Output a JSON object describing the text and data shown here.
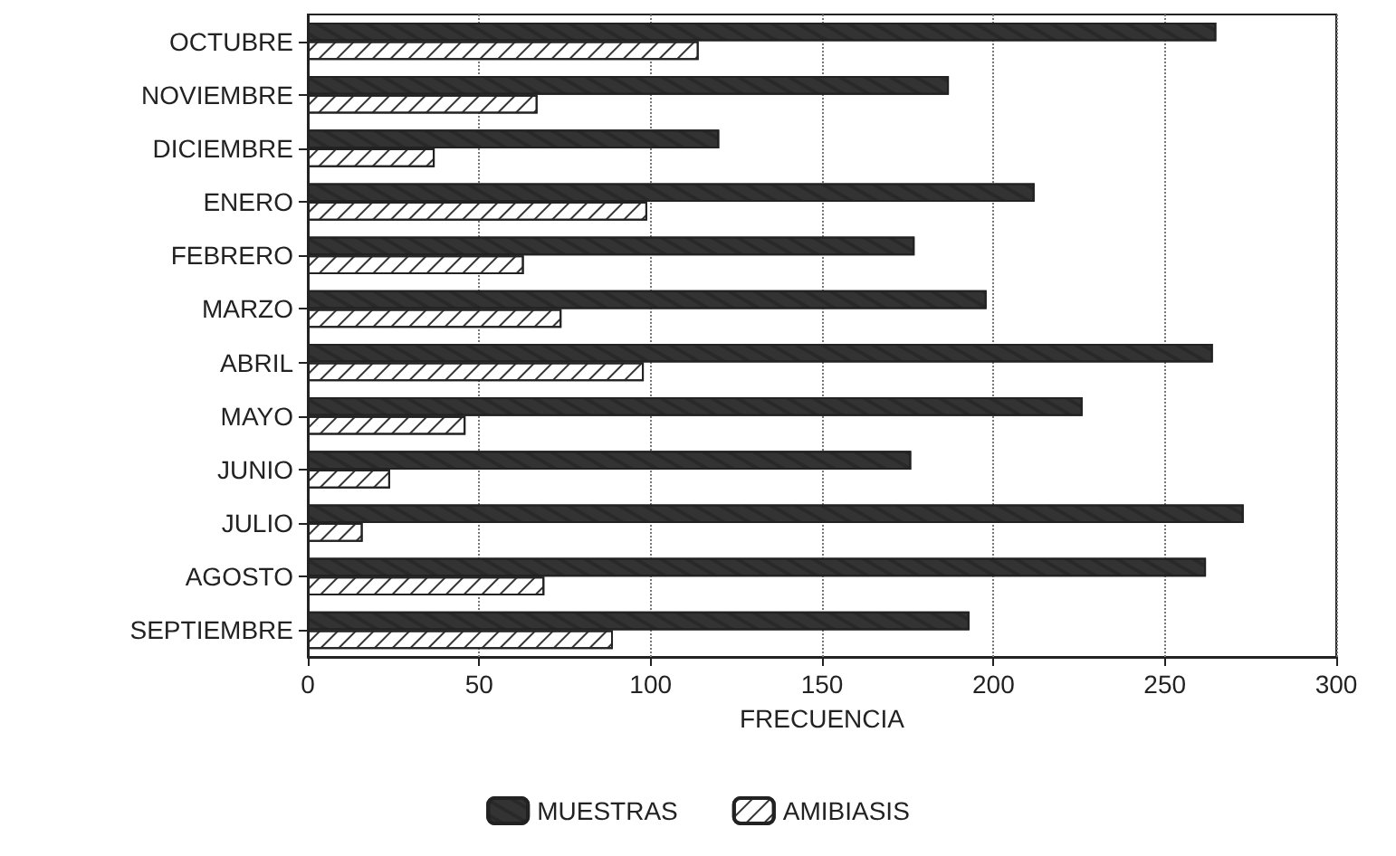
{
  "chart_data": {
    "type": "bar",
    "orientation": "horizontal",
    "xlabel": "FRECUENCIA",
    "categories": [
      "OCTUBRE",
      "NOVIEMBRE",
      "DICIEMBRE",
      "ENERO",
      "FEBRERO",
      "MARZO",
      "ABRIL",
      "MAYO",
      "JUNIO",
      "JULIO",
      "AGOSTO",
      "SEPTIEMBRE"
    ],
    "series": [
      {
        "name": "MUESTRAS",
        "color": "#333333",
        "values": [
          265,
          187,
          120,
          212,
          177,
          198,
          264,
          226,
          176,
          273,
          262,
          193
        ]
      },
      {
        "name": "AMIBIASIS",
        "color": "#ffffff",
        "values": [
          114,
          67,
          37,
          99,
          63,
          74,
          98,
          46,
          24,
          16,
          69,
          89
        ]
      }
    ],
    "xlim": [
      0,
      300
    ],
    "xticks": [
      0,
      50,
      100,
      150,
      200,
      250,
      300
    ],
    "grid": "x",
    "legend": "bottom"
  }
}
